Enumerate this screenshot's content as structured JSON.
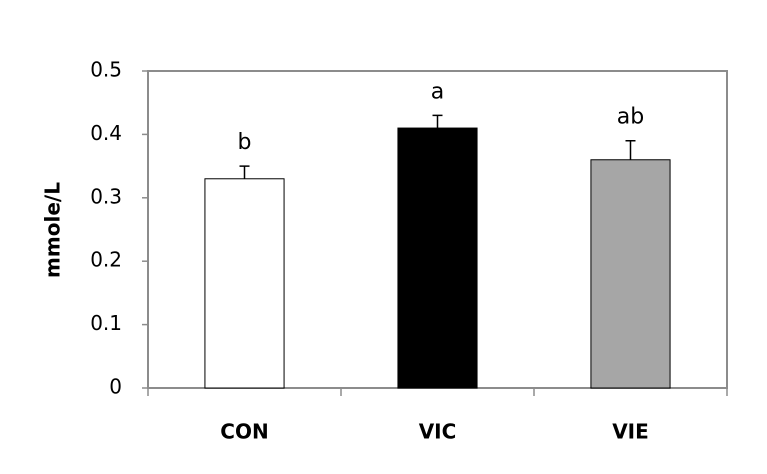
{
  "chart_data": {
    "type": "bar",
    "y_label": "mmole/L",
    "categories": [
      "CON",
      "VIC",
      "VIE"
    ],
    "values": [
      0.33,
      0.41,
      0.36
    ],
    "errors": [
      0.02,
      0.02,
      0.03
    ],
    "significance_letters": [
      "b",
      "a",
      "ab"
    ],
    "colors": [
      "#ffffff",
      "#000000",
      "#a6a6a6"
    ],
    "ylim": [
      0,
      0.5
    ],
    "yticks": [
      0,
      0.1,
      0.2,
      0.3,
      0.4,
      0.5
    ],
    "grid": false
  }
}
